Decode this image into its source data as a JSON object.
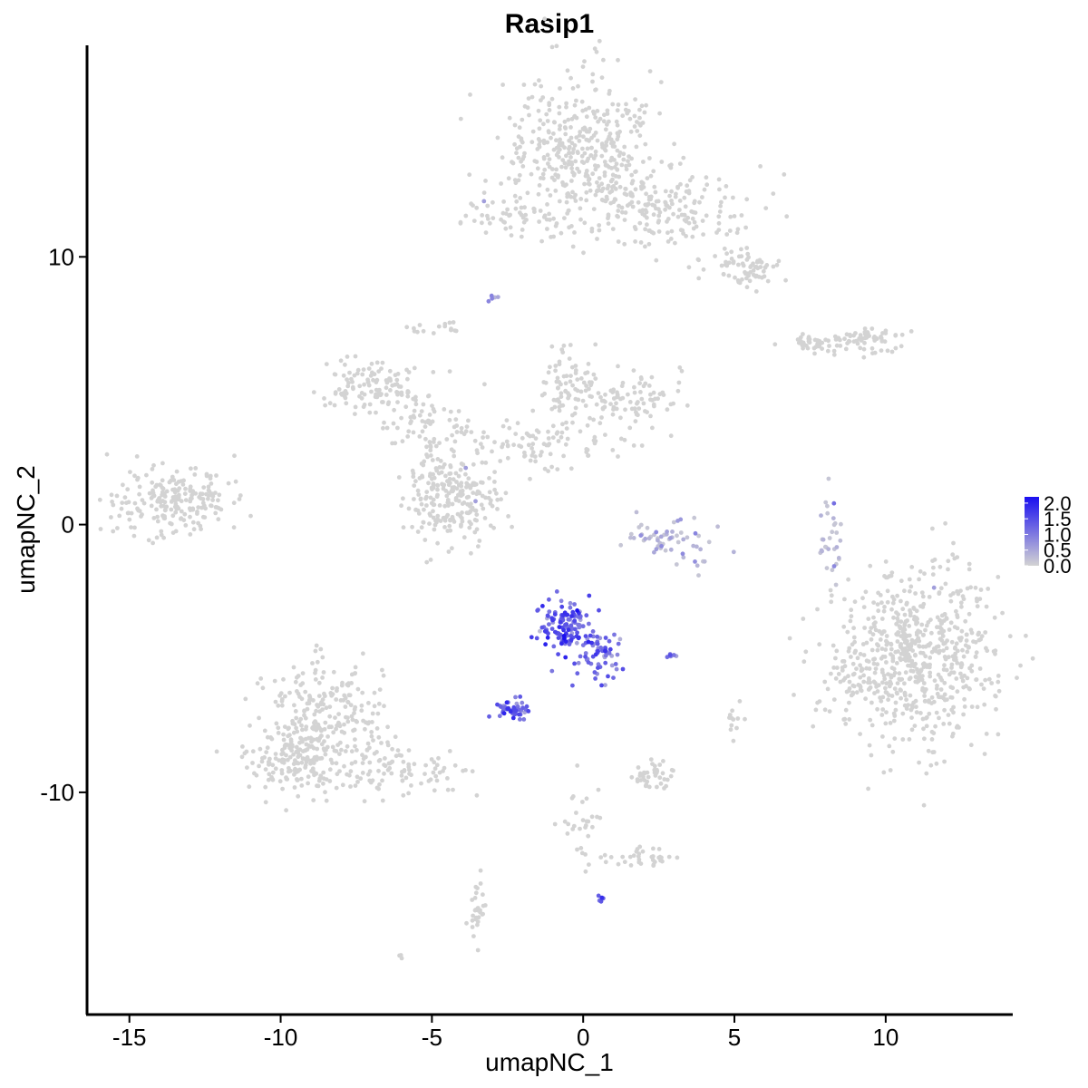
{
  "chart_data": {
    "type": "scatter",
    "title": "Rasip1",
    "xlabel": "umapNC_1",
    "ylabel": "umapNC_2",
    "xlim": [
      -16.4,
      14.2
    ],
    "ylim": [
      -18.3,
      17.9
    ],
    "x_ticks": [
      -15,
      -10,
      -5,
      0,
      5,
      10
    ],
    "y_ticks": [
      -10,
      0,
      10
    ],
    "x_tick_labels": [
      "-15",
      "-10",
      "-5",
      "0",
      "5",
      "10"
    ],
    "y_tick_labels": [
      "-10",
      "0",
      "10"
    ],
    "grid": false,
    "legend": {
      "position": "right",
      "type": "colorbar",
      "ticks": [
        0.0,
        0.5,
        1.0,
        1.5,
        2.0
      ],
      "labels": [
        "0.0",
        "0.5",
        "1.0",
        "1.5",
        "2.0"
      ]
    },
    "color_scale": {
      "low": "#d3d3d3",
      "high": "#1a0ff0",
      "min": 0,
      "max": 2.2
    },
    "clusters": [
      {
        "cx": 0.0,
        "cy": 14.0,
        "sx": 1.3,
        "sy": 1.4,
        "n": 420,
        "expr": 0
      },
      {
        "cx": 2.6,
        "cy": 11.8,
        "sx": 1.3,
        "sy": 0.8,
        "n": 180,
        "expr": 0
      },
      {
        "cx": 5.3,
        "cy": 9.6,
        "sx": 0.6,
        "sy": 0.35,
        "n": 70,
        "expr": 0
      },
      {
        "cx": -2.2,
        "cy": 11.5,
        "sx": 0.9,
        "sy": 0.35,
        "n": 50,
        "expr": 0
      },
      {
        "cx": -3.0,
        "cy": 8.5,
        "sx": 0.1,
        "sy": 0.15,
        "n": 5,
        "expr": 0.9
      },
      {
        "cx": -4.5,
        "cy": 7.4,
        "sx": 0.2,
        "sy": 0.2,
        "n": 10,
        "expr": 0
      },
      {
        "cx": 7.6,
        "cy": 6.8,
        "sx": 0.7,
        "sy": 0.18,
        "n": 40,
        "expr": 0
      },
      {
        "cx": 9.4,
        "cy": 6.9,
        "sx": 0.7,
        "sy": 0.25,
        "n": 60,
        "expr": 0
      },
      {
        "cx": -7.0,
        "cy": 5.2,
        "sx": 0.9,
        "sy": 0.5,
        "n": 120,
        "expr": 0
      },
      {
        "cx": -5.0,
        "cy": 3.8,
        "sx": 0.7,
        "sy": 0.6,
        "n": 60,
        "expr": 0
      },
      {
        "cx": -0.5,
        "cy": 5.3,
        "sx": 0.5,
        "sy": 0.6,
        "n": 70,
        "expr": 0
      },
      {
        "cx": 1.5,
        "cy": 4.6,
        "sx": 1.0,
        "sy": 0.5,
        "n": 90,
        "expr": 0
      },
      {
        "cx": -1.5,
        "cy": 3.0,
        "sx": 1.2,
        "sy": 0.6,
        "n": 100,
        "expr": 0
      },
      {
        "cx": -4.8,
        "cy": 1.2,
        "sx": 0.6,
        "sy": 0.9,
        "n": 140,
        "expr": 0
      },
      {
        "cx": -3.8,
        "cy": 0.8,
        "sx": 0.6,
        "sy": 0.8,
        "n": 100,
        "expr": 0
      },
      {
        "cx": -13.5,
        "cy": 0.9,
        "sx": 1.1,
        "sy": 0.6,
        "n": 220,
        "expr": 0
      },
      {
        "cx": 2.9,
        "cy": -0.6,
        "sx": 0.8,
        "sy": 0.5,
        "n": 60,
        "expr": 0.25
      },
      {
        "cx": 8.2,
        "cy": -0.4,
        "sx": 0.2,
        "sy": 0.9,
        "n": 30,
        "expr": 0.1
      },
      {
        "cx": 11.0,
        "cy": -5.0,
        "sx": 1.3,
        "sy": 1.6,
        "n": 650,
        "expr": 0
      },
      {
        "cx": 9.0,
        "cy": -6.0,
        "sx": 0.4,
        "sy": 0.9,
        "n": 40,
        "expr": 0
      },
      {
        "cx": -0.6,
        "cy": -3.8,
        "sx": 0.4,
        "sy": 0.5,
        "n": 130,
        "expr": 1.35
      },
      {
        "cx": 0.6,
        "cy": -4.9,
        "sx": 0.4,
        "sy": 0.45,
        "n": 60,
        "expr": 1.1
      },
      {
        "cx": -2.3,
        "cy": -6.9,
        "sx": 0.25,
        "sy": 0.18,
        "n": 50,
        "expr": 1.3
      },
      {
        "cx": 2.9,
        "cy": -4.9,
        "sx": 0.12,
        "sy": 0.06,
        "n": 8,
        "expr": 1.0
      },
      {
        "cx": -8.5,
        "cy": -7.0,
        "sx": 1.0,
        "sy": 1.0,
        "n": 220,
        "expr": 0
      },
      {
        "cx": -9.5,
        "cy": -8.8,
        "sx": 0.8,
        "sy": 0.6,
        "n": 150,
        "expr": 0
      },
      {
        "cx": -6.5,
        "cy": -9.2,
        "sx": 1.5,
        "sy": 0.5,
        "n": 120,
        "expr": 0
      },
      {
        "cx": 2.4,
        "cy": -9.4,
        "sx": 0.4,
        "sy": 0.3,
        "n": 40,
        "expr": 0
      },
      {
        "cx": 2.0,
        "cy": -12.5,
        "sx": 0.7,
        "sy": 0.2,
        "n": 35,
        "expr": 0
      },
      {
        "cx": -3.5,
        "cy": -14.5,
        "sx": 0.18,
        "sy": 0.7,
        "n": 30,
        "expr": 0
      },
      {
        "cx": 0.0,
        "cy": -11.0,
        "sx": 0.3,
        "sy": 0.8,
        "n": 30,
        "expr": 0
      },
      {
        "cx": 0.6,
        "cy": -14.0,
        "sx": 0.05,
        "sy": 0.12,
        "n": 6,
        "expr": 1.2
      },
      {
        "cx": 5.0,
        "cy": -7.2,
        "sx": 0.2,
        "sy": 0.3,
        "n": 12,
        "expr": 0
      },
      {
        "cx": -6.0,
        "cy": -16.1,
        "sx": 0.06,
        "sy": 0.06,
        "n": 4,
        "expr": 0
      },
      {
        "cx": -5.5,
        "cy": 7.3,
        "sx": 0.15,
        "sy": 0.15,
        "n": 6,
        "expr": 0
      }
    ]
  }
}
